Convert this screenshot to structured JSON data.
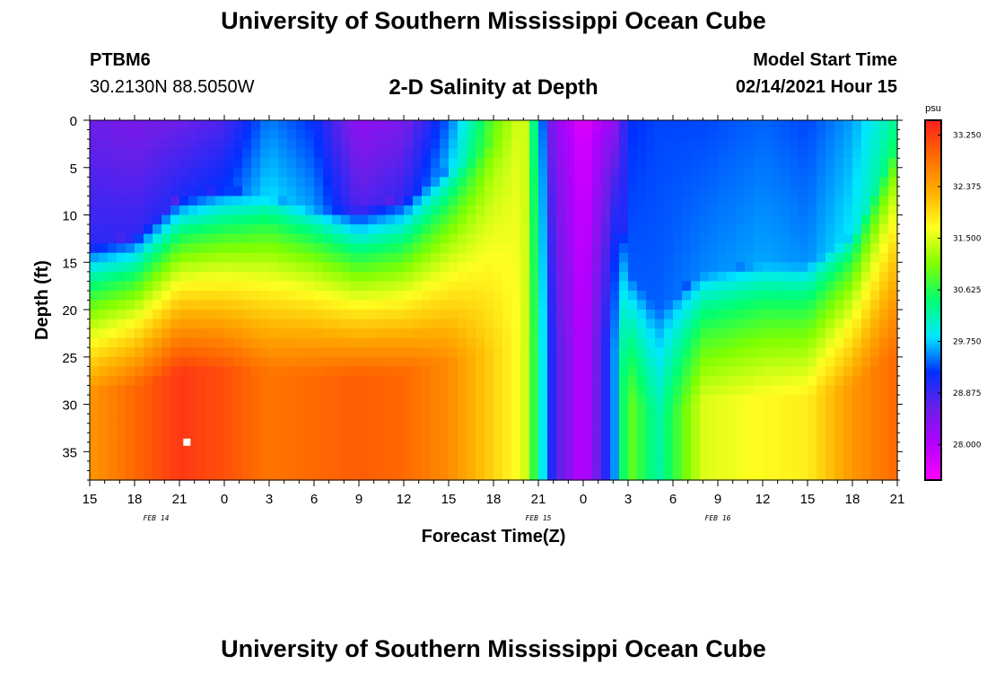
{
  "header": {
    "title": "University of Southern Mississippi Ocean Cube",
    "station_id": "PTBM6",
    "coordinates": "30.2130N 88.5050W",
    "model_start_label": "Model Start Time",
    "model_start_value": "02/14/2021 Hour 15"
  },
  "footer": {
    "title": "University of Southern Mississippi Ocean Cube"
  },
  "colors": {
    "background": "#ffffff",
    "colormap": [
      "#ff00ff",
      "#b400ff",
      "#6a1fe8",
      "#0030ff",
      "#00e8ff",
      "#00ff70",
      "#80ff00",
      "#ffff20",
      "#ffb000",
      "#ff6a00",
      "#ff1e1e"
    ]
  },
  "chart_data": {
    "type": "heatmap",
    "title": "2-D Salinity at Depth",
    "xlabel": "Forecast Time(Z)",
    "ylabel": "Depth (ft)",
    "x_ticks": [
      "15",
      "18",
      "21",
      "0",
      "3",
      "6",
      "9",
      "12",
      "15",
      "18",
      "21",
      "0",
      "3",
      "6",
      "9",
      "12",
      "15",
      "18",
      "21"
    ],
    "x_date_labels": [
      {
        "label": "FEB 14",
        "tick_index": 2
      },
      {
        "label": "FEB 15",
        "tick_index": 10
      },
      {
        "label": "FEB 16",
        "tick_index": 14
      }
    ],
    "y_ticks": [
      0,
      5,
      10,
      15,
      20,
      25,
      30,
      35
    ],
    "ylim": [
      0,
      38
    ],
    "colorbar": {
      "unit": "psu",
      "range": [
        27.4,
        33.5
      ],
      "ticks": [
        "33.250",
        "32.375",
        "31.500",
        "30.625",
        "29.750",
        "28.875",
        "28.000"
      ]
    },
    "max_marker": {
      "time_hours_from_start": 6.5,
      "depth_ft": 34
    },
    "columns": [
      {
        "t": 0,
        "surface": 28.6,
        "halo_depth": 13,
        "bottom": 32.5
      },
      {
        "t": 3,
        "surface": 28.5,
        "halo_depth": 12,
        "bottom": 32.9
      },
      {
        "t": 6,
        "surface": 28.6,
        "halo_depth": 8,
        "bottom": 33.3
      },
      {
        "t": 9,
        "surface": 28.8,
        "halo_depth": 7,
        "bottom": 33.1
      },
      {
        "t": 12,
        "surface": 29.5,
        "halo_depth": 8,
        "bottom": 32.8
      },
      {
        "t": 15,
        "surface": 29.2,
        "halo_depth": 9,
        "bottom": 32.9
      },
      {
        "t": 18,
        "surface": 28.3,
        "halo_depth": 9,
        "bottom": 33.0
      },
      {
        "t": 21,
        "surface": 28.5,
        "halo_depth": 8,
        "bottom": 32.9
      },
      {
        "t": 24,
        "surface": 29.4,
        "halo_depth": 5,
        "bottom": 32.6
      },
      {
        "t": 27,
        "surface": 30.9,
        "halo_depth": 2,
        "bottom": 32.0
      },
      {
        "t": 29,
        "surface": 31.6,
        "halo_depth": 1,
        "bottom": 31.6
      },
      {
        "t": 30,
        "surface": 29.8,
        "halo_depth": 0,
        "bottom": 30.3
      },
      {
        "t": 31,
        "surface": 28.3,
        "halo_depth": 0,
        "bottom": 28.9
      },
      {
        "t": 33,
        "surface": 27.6,
        "halo_depth": 0,
        "bottom": 27.9
      },
      {
        "t": 35,
        "surface": 28.2,
        "halo_depth": 0,
        "bottom": 29.4
      },
      {
        "t": 36,
        "surface": 29.2,
        "halo_depth": 16,
        "bottom": 31.0
      },
      {
        "t": 38,
        "surface": 29.3,
        "halo_depth": 20,
        "bottom": 30.2
      },
      {
        "t": 41,
        "surface": 29.3,
        "halo_depth": 16,
        "bottom": 31.5
      },
      {
        "t": 45,
        "surface": 29.4,
        "halo_depth": 15,
        "bottom": 31.7
      },
      {
        "t": 48,
        "surface": 29.3,
        "halo_depth": 15,
        "bottom": 31.8
      },
      {
        "t": 51,
        "surface": 29.6,
        "halo_depth": 12,
        "bottom": 32.5
      },
      {
        "t": 54,
        "surface": 30.3,
        "halo_depth": 2,
        "bottom": 32.9
      }
    ]
  }
}
